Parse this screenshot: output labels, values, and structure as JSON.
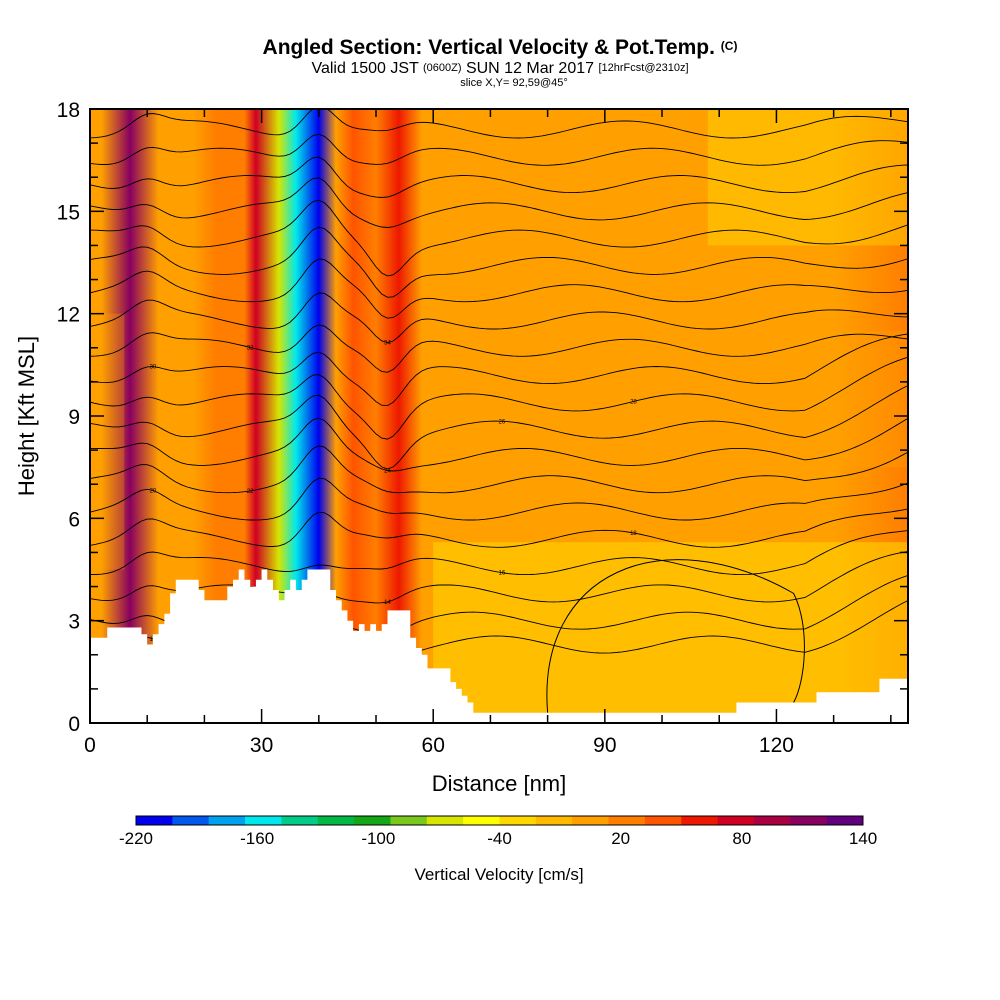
{
  "header": {
    "title": "Angled Section: Vertical Velocity & Pot.Temp.",
    "title_unit": "(C)",
    "subtitle_pre": "Valid 1500 JST",
    "subtitle_utc": "(0600Z)",
    "subtitle_date": "SUN 12 Mar 2017",
    "subtitle_fcst": "[12hrFcst@2310z]",
    "slice": "slice X,Y= 92,59@45°"
  },
  "chart_data": {
    "type": "heatmap",
    "xlabel": "Distance [nm]",
    "ylabel": "Height [Kft MSL]",
    "xlim": [
      0,
      143
    ],
    "ylim": [
      0,
      18
    ],
    "x_ticks": [
      "0",
      "30",
      "60",
      "90",
      "120"
    ],
    "y_ticks": [
      "0",
      "3",
      "6",
      "9",
      "12",
      "15",
      "18"
    ],
    "colorbar": {
      "label": "Vertical Velocity [cm/s]",
      "tick_labels": [
        "-220",
        "-160",
        "-100",
        "-40",
        "20",
        "80",
        "140"
      ],
      "colors": [
        "#0000ee",
        "#0058ee",
        "#00a2f0",
        "#00e8ec",
        "#00cc88",
        "#00b844",
        "#14a614",
        "#7ac81e",
        "#d6e600",
        "#ffff00",
        "#ffd800",
        "#ffba00",
        "#ffa000",
        "#ff7e00",
        "#ff5400",
        "#ee1800",
        "#d00024",
        "#a80040",
        "#880060",
        "#60007e"
      ]
    },
    "columns": [
      {
        "x": 2,
        "w": 0
      },
      {
        "x": 7,
        "w": 115
      },
      {
        "x": 12,
        "w": 10
      },
      {
        "x": 18,
        "w": 10
      },
      {
        "x": 22,
        "w": 20
      },
      {
        "x": 27,
        "w": 30
      },
      {
        "x": 29,
        "w": 70
      },
      {
        "x": 33,
        "w": -70
      },
      {
        "x": 36,
        "w": -150
      },
      {
        "x": 40,
        "w": -215
      },
      {
        "x": 43,
        "w": 10
      },
      {
        "x": 46,
        "w": 40
      },
      {
        "x": 50,
        "w": 15
      },
      {
        "x": 54,
        "w": 55
      },
      {
        "x": 58,
        "w": 10
      },
      {
        "x": 62,
        "w": 5
      },
      {
        "x": 70,
        "w": 0
      },
      {
        "x": 80,
        "w": 5
      },
      {
        "x": 95,
        "w": 5
      },
      {
        "x": 110,
        "w": 0
      },
      {
        "x": 130,
        "w": 5
      },
      {
        "x": 143,
        "w": 20
      }
    ],
    "terrain": {
      "x": [
        0,
        3,
        6,
        9,
        10,
        11,
        12,
        13,
        14,
        15,
        17,
        19,
        20,
        22,
        24,
        25,
        26,
        27,
        28,
        29,
        30,
        31,
        32,
        33,
        34,
        35,
        36,
        37,
        38,
        40,
        42,
        43,
        44,
        45,
        46,
        47,
        48,
        49,
        50,
        51,
        52,
        53,
        54,
        56,
        57,
        58,
        59,
        62,
        63,
        64,
        65,
        66,
        67,
        68,
        70,
        75,
        80,
        85,
        90,
        100,
        112,
        113,
        115,
        125,
        127,
        130,
        135,
        138,
        143
      ],
      "height_kft": [
        2.5,
        2.8,
        2.8,
        2.6,
        2.3,
        2.6,
        2.9,
        3.2,
        3.8,
        4.2,
        4.2,
        3.9,
        3.6,
        3.6,
        4.0,
        4.2,
        4.5,
        4.2,
        4.0,
        4.2,
        4.5,
        4.2,
        3.9,
        3.6,
        3.9,
        4.2,
        3.9,
        4.2,
        4.5,
        4.5,
        3.9,
        3.6,
        3.3,
        3.0,
        2.7,
        2.9,
        2.7,
        2.9,
        2.7,
        2.9,
        3.3,
        3.3,
        3.3,
        2.5,
        2.2,
        2.0,
        1.6,
        1.6,
        1.2,
        1.0,
        0.8,
        0.6,
        0.3,
        0.3,
        0.3,
        0.3,
        0.3,
        0.3,
        0.3,
        0.3,
        0.3,
        0.6,
        0.6,
        0.6,
        0.9,
        0.9,
        0.9,
        1.3,
        1.3
      ]
    },
    "isentropes": {
      "base_heights_kft": [
        2.3,
        3.0,
        3.8,
        4.6,
        5.4,
        6.2,
        7.0,
        7.8,
        8.6,
        9.4,
        10.2,
        11.0,
        11.8,
        12.6,
        13.4,
        14.2,
        15.0,
        15.8,
        16.6,
        17.4
      ],
      "label_values": [
        "10",
        "12",
        "14",
        "16",
        "18",
        "20",
        "22",
        "24",
        "26",
        "28",
        "30",
        "32",
        "34"
      ]
    }
  }
}
